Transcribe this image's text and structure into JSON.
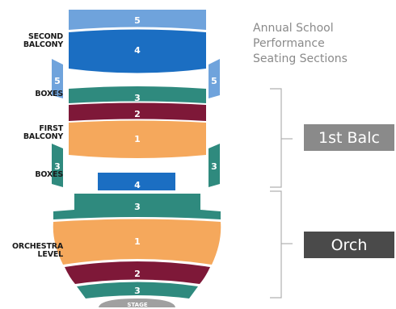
{
  "title_lines": [
    "Annual School",
    "Performance",
    "Seating Sections"
  ],
  "levels": {
    "second_balcony": [
      "SECOND",
      "BALCONY"
    ],
    "boxes_upper": [
      "BOXES"
    ],
    "first_balcony": [
      "FIRST",
      "BALCONY"
    ],
    "boxes_lower": [
      "BOXES"
    ],
    "orchestra": [
      "ORCHESTRA",
      "LEVEL"
    ]
  },
  "sections": [
    {
      "id": "sec-5-top",
      "num": "5",
      "color": "#6fa3dc"
    },
    {
      "id": "sec-4-top",
      "num": "4",
      "color": "#1b6ec2"
    },
    {
      "id": "box-5-left",
      "num": "5",
      "color": "#6fa3dc"
    },
    {
      "id": "box-5-right",
      "num": "5",
      "color": "#6fa3dc"
    },
    {
      "id": "sec-3-first",
      "num": "3",
      "color": "#2f8a7e"
    },
    {
      "id": "sec-2-first",
      "num": "2",
      "color": "#7e1838"
    },
    {
      "id": "sec-1-first",
      "num": "1",
      "color": "#f5a85c"
    },
    {
      "id": "box-3-left",
      "num": "3",
      "color": "#2f8a7e"
    },
    {
      "id": "box-3-right",
      "num": "3",
      "color": "#2f8a7e"
    },
    {
      "id": "sec-4-orch",
      "num": "4",
      "color": "#1b6ec2"
    },
    {
      "id": "sec-3-orch-top",
      "num": "3",
      "color": "#2f8a7e"
    },
    {
      "id": "sec-1-orch",
      "num": "1",
      "color": "#f5a85c"
    },
    {
      "id": "sec-2-orch",
      "num": "2",
      "color": "#7e1838"
    },
    {
      "id": "sec-3-orch-bottom",
      "num": "3",
      "color": "#2f8a7e"
    }
  ],
  "stage": "STAGE",
  "legend": [
    {
      "label": "1st Balc",
      "color": "#8a8a8a"
    },
    {
      "label": "Orch",
      "color": "#4a4a4a"
    }
  ],
  "colors": {
    "bracket": "#b0b0b0",
    "stage": "#a0a0a0",
    "text_dark": "#1a1a1a"
  }
}
